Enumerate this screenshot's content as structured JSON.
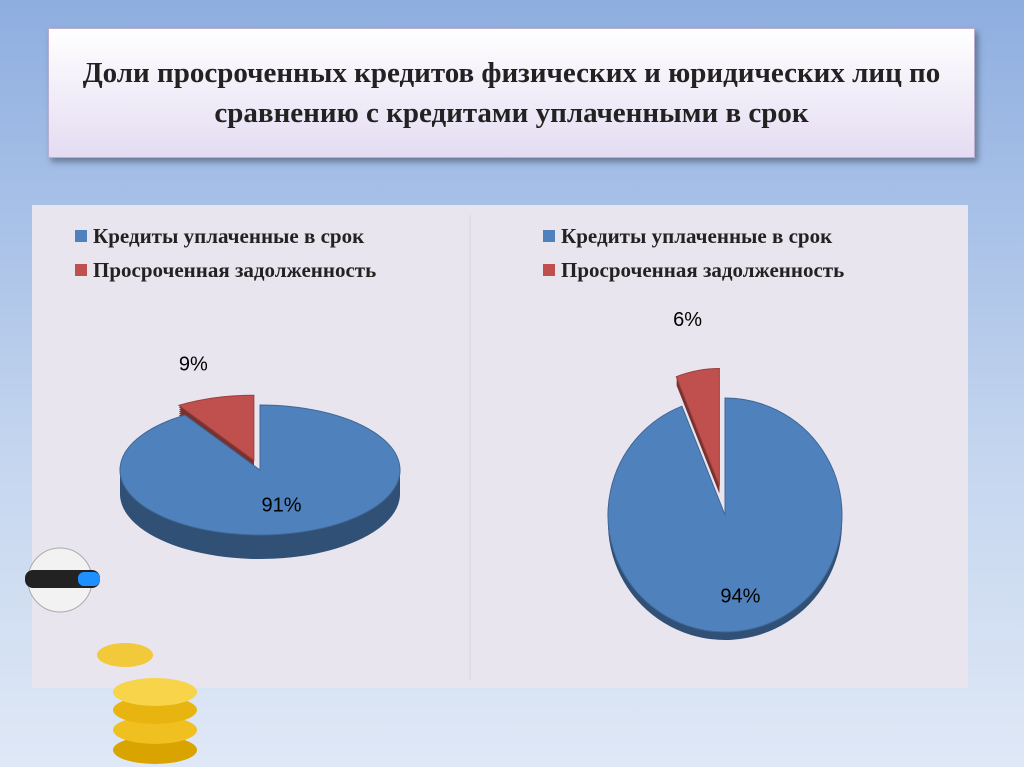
{
  "title": "Доли просроченных кредитов физических и юридических лиц по сравнению с кредитами уплаченными в срок",
  "chart_data": [
    {
      "type": "pie",
      "categories": [
        "Кредиты уплаченные в срок",
        "Просроченная задолженность"
      ],
      "values": [
        91,
        9
      ],
      "value_labels": [
        "91%",
        "9%"
      ],
      "colors": [
        "#4f81bd",
        "#c0504d"
      ]
    },
    {
      "type": "pie",
      "categories": [
        "Кредиты уплаченные в срок",
        "Просроченная задолженность"
      ],
      "values": [
        94,
        6
      ],
      "value_labels": [
        "94%",
        "6%"
      ],
      "colors": [
        "#4f81bd",
        "#c0504d"
      ]
    }
  ]
}
